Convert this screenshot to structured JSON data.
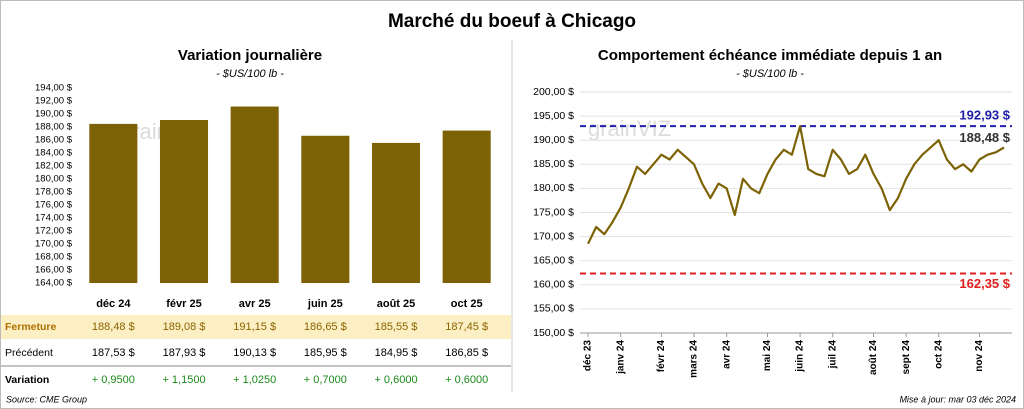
{
  "title": "Marché du boeuf à Chicago",
  "chart_data": [
    {
      "type": "bar",
      "title": "Variation journalière",
      "subtitle": "- $US/100 lb -",
      "categories": [
        "déc 24",
        "févr 25",
        "avr 25",
        "juin 25",
        "août 25",
        "oct 25"
      ],
      "values": [
        188.48,
        189.08,
        191.15,
        186.65,
        185.55,
        187.45
      ],
      "color": "#7d6205",
      "ylim": [
        164,
        194
      ],
      "yticks": [
        {
          "value": 164,
          "label": "164,00 $"
        },
        {
          "value": 166,
          "label": "166,00 $"
        },
        {
          "value": 168,
          "label": "168,00 $"
        },
        {
          "value": 170,
          "label": "170,00 $"
        },
        {
          "value": 172,
          "label": "172,00 $"
        },
        {
          "value": 174,
          "label": "174,00 $"
        },
        {
          "value": 176,
          "label": "176,00 $"
        },
        {
          "value": 178,
          "label": "178,00 $"
        },
        {
          "value": 180,
          "label": "180,00 $"
        },
        {
          "value": 182,
          "label": "182,00 $"
        },
        {
          "value": 184,
          "label": "184,00 $"
        },
        {
          "value": 186,
          "label": "186,00 $"
        },
        {
          "value": 188,
          "label": "188,00 $"
        },
        {
          "value": 190,
          "label": "190,00 $"
        },
        {
          "value": 192,
          "label": "192,00 $"
        },
        {
          "value": 194,
          "label": "194,00 $"
        }
      ],
      "grid": false,
      "watermark": "grainVIZ"
    },
    {
      "type": "line",
      "title": "Comportement échéance immédiate depuis 1 an",
      "subtitle": "- $US/100 lb -",
      "categories": [
        "déc 23",
        null,
        null,
        null,
        "janv 24",
        null,
        null,
        null,
        null,
        "févr 24",
        null,
        null,
        null,
        "mars 24",
        null,
        null,
        null,
        "avr 24",
        null,
        null,
        null,
        null,
        "mai 24",
        null,
        null,
        null,
        "juin 24",
        null,
        null,
        null,
        "juil 24",
        null,
        null,
        null,
        null,
        "août 24",
        null,
        null,
        null,
        "sept 24",
        null,
        null,
        null,
        "oct 24",
        null,
        null,
        null,
        null,
        "nov 24",
        null,
        null,
        null
      ],
      "series": [
        {
          "name": "Échéance immédiate",
          "color": "#7d6205",
          "end_label": "188,48 $",
          "values": [
            168.5,
            172,
            170.5,
            173,
            176,
            180,
            184.5,
            183,
            185,
            187,
            186,
            188,
            186.5,
            185,
            181,
            178,
            181,
            180,
            174.5,
            182,
            180,
            179,
            183,
            186,
            188,
            187,
            192.9,
            184,
            183,
            182.5,
            188,
            186,
            183,
            184,
            187,
            183,
            180,
            175.5,
            178,
            182,
            185,
            187,
            188.5,
            190,
            186,
            184,
            185,
            183.5,
            186,
            187,
            187.5,
            188.48
          ]
        }
      ],
      "ref_lines": [
        {
          "value": 192.93,
          "label": "192,93 $",
          "color": "#1f1fa8"
        },
        {
          "value": 162.35,
          "label": "162,35 $",
          "color": "#e02020"
        }
      ],
      "ylim": [
        150,
        200
      ],
      "yticks": [
        {
          "value": 150,
          "label": "150,00 $"
        },
        {
          "value": 155,
          "label": "155,00 $"
        },
        {
          "value": 160,
          "label": "160,00 $"
        },
        {
          "value": 165,
          "label": "165,00 $"
        },
        {
          "value": 170,
          "label": "170,00 $"
        },
        {
          "value": 175,
          "label": "175,00 $"
        },
        {
          "value": 180,
          "label": "180,00 $"
        },
        {
          "value": 185,
          "label": "185,00 $"
        },
        {
          "value": 190,
          "label": "190,00 $"
        },
        {
          "value": 195,
          "label": "195,00 $"
        },
        {
          "value": 200,
          "label": "200,00 $"
        }
      ],
      "grid": true,
      "watermark": "grainVIZ"
    }
  ],
  "table": {
    "rows": [
      {
        "label": "Fermeture",
        "cells": [
          "188,48 $",
          "189,08 $",
          "191,15 $",
          "186,65 $",
          "185,55 $",
          "187,45 $"
        ]
      },
      {
        "label": "Précédent",
        "cells": [
          "187,53 $",
          "187,93 $",
          "190,13 $",
          "185,95 $",
          "184,95 $",
          "186,85 $"
        ]
      },
      {
        "label": "Variation",
        "cells": [
          "+ 0,9500",
          "+ 1,1500",
          "+ 1,0250",
          "+ 0,7000",
          "+ 0,6000",
          "+ 0,6000"
        ]
      }
    ]
  },
  "footer": {
    "source": "Source: CME Group",
    "updated": "Mise à jour: mar 03 déc 2024"
  }
}
